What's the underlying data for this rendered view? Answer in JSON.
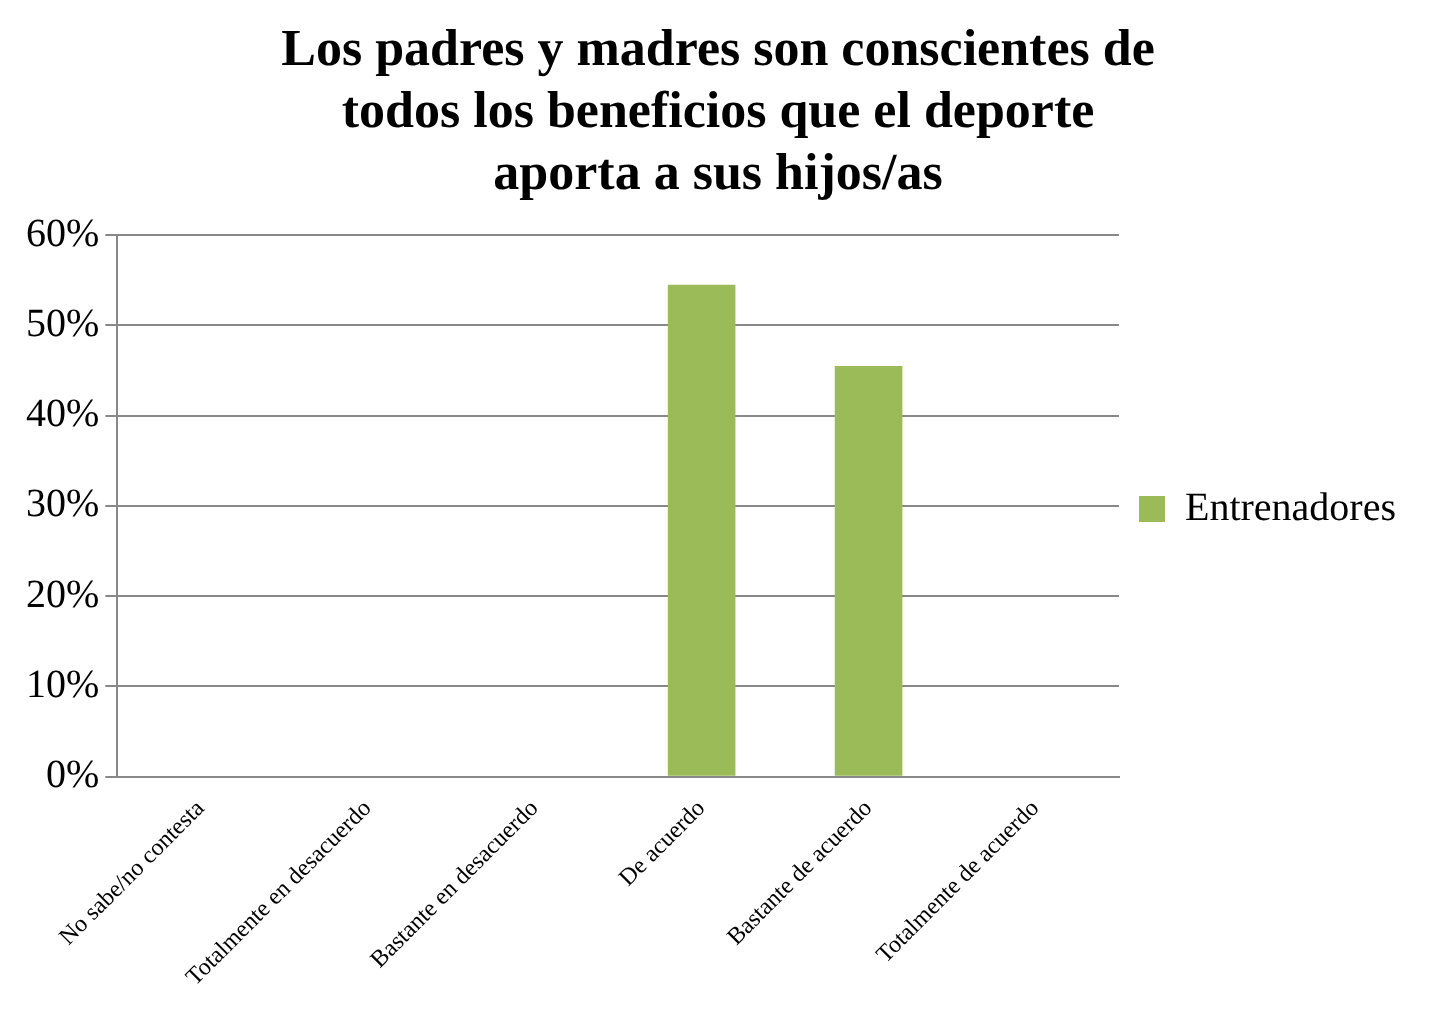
{
  "chart_data": {
    "type": "bar",
    "title": "Los padres y madres son conscientes de todos los beneficios que el deporte aporta a sus hijos/as",
    "categories": [
      "No sabe/no contesta",
      "Totalmente en desacuerdo",
      "Bastante en desacuerdo",
      "De acuerdo",
      "Bastante de acuerdo",
      "Totalmente de acuerdo"
    ],
    "series": [
      {
        "name": "Entrenadores",
        "color": "#9bbb59",
        "values": [
          0,
          0,
          0,
          54.5,
          45.5,
          0
        ]
      }
    ],
    "ylim": [
      0,
      60
    ],
    "yticks": [
      {
        "value": 0,
        "label": "0%"
      },
      {
        "value": 10,
        "label": "10%"
      },
      {
        "value": 20,
        "label": "20%"
      },
      {
        "value": 30,
        "label": "30%"
      },
      {
        "value": 40,
        "label": "40%"
      },
      {
        "value": 50,
        "label": "50%"
      },
      {
        "value": 60,
        "label": "60%"
      }
    ],
    "grid": "y",
    "legend": "right"
  }
}
